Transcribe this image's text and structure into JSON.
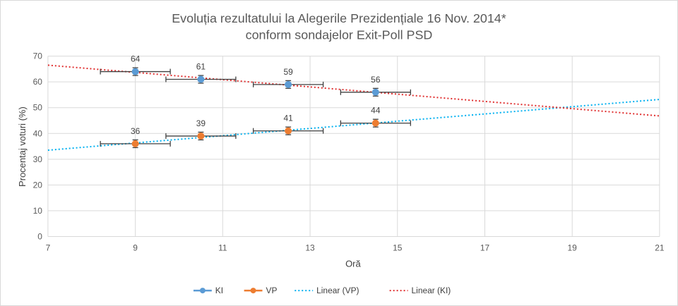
{
  "chart_data": {
    "type": "scatter",
    "title_line1": "Evoluția rezultatului la Alegerile Prezidențiale 16 Nov. 2014*",
    "title_line2": "conform sondajelor Exit-Poll PSD",
    "xlabel": "Oră",
    "ylabel": "Procentaj voturi (%)",
    "xlim": [
      7,
      21
    ],
    "ylim": [
      0,
      70
    ],
    "x_ticks": [
      7,
      9,
      11,
      13,
      15,
      17,
      19,
      21
    ],
    "y_ticks": [
      0,
      10,
      20,
      30,
      40,
      50,
      60,
      70
    ],
    "grid": true,
    "legend_position": "bottom",
    "series": [
      {
        "name": "KI",
        "color": "#5B9BD5",
        "x": [
          9,
          10.5,
          12.5,
          14.5
        ],
        "y": [
          64,
          61,
          59,
          56
        ],
        "labels": [
          "64",
          "61",
          "59",
          "56"
        ],
        "x_error": 0.8,
        "y_error": 1.5
      },
      {
        "name": "VP",
        "color": "#ED7D31",
        "x": [
          9,
          10.5,
          12.5,
          14.5
        ],
        "y": [
          36,
          39,
          41,
          44
        ],
        "labels": [
          "36",
          "39",
          "41",
          "44"
        ],
        "x_error": 0.8,
        "y_error": 1.5
      }
    ],
    "trendlines": [
      {
        "name": "Linear (VP)",
        "color": "#00B0F0",
        "y_at_xmin": 33.5,
        "y_at_xmax": 53.2
      },
      {
        "name": "Linear (KI)",
        "color": "#E03030",
        "y_at_xmin": 66.5,
        "y_at_xmax": 46.8
      }
    ]
  }
}
